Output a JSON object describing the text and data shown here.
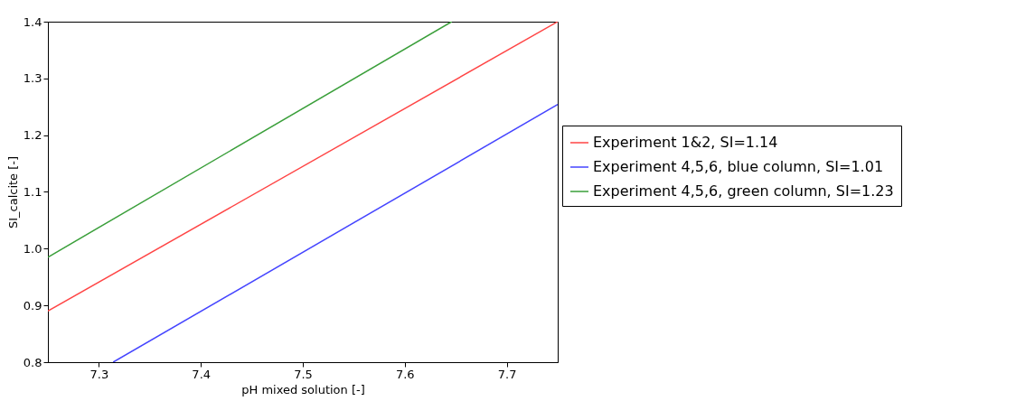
{
  "chart_data": {
    "type": "line",
    "xlabel": "pH mixed solution [-]",
    "ylabel": "SI_calcite [-]",
    "xlim": [
      7.25,
      7.75
    ],
    "ylim": [
      0.8,
      1.4
    ],
    "xticks": [
      7.3,
      7.4,
      7.5,
      7.6,
      7.7
    ],
    "yticks": [
      0.8,
      0.9,
      {
        "value": 1,
        "label": "1.0"
      },
      1.1,
      1.2,
      1.3,
      1.4
    ],
    "legend": "right",
    "grid": false,
    "series": [
      {
        "name": "Experiment 1&2, SI=1.14",
        "color": "#ff4444",
        "x": [
          7.25,
          7.75
        ],
        "values": [
          0.89,
          1.4
        ]
      },
      {
        "name": "Experiment 4,5,6, blue column, SI=1.01",
        "color": "#4444ff",
        "x": [
          7.314,
          7.75
        ],
        "values": [
          0.8,
          1.254
        ]
      },
      {
        "name": "Experiment 4,5,6, green column, SI=1.23",
        "color": "#3a9f3a",
        "x": [
          7.25,
          7.646
        ],
        "values": [
          0.985,
          1.4
        ]
      }
    ]
  }
}
